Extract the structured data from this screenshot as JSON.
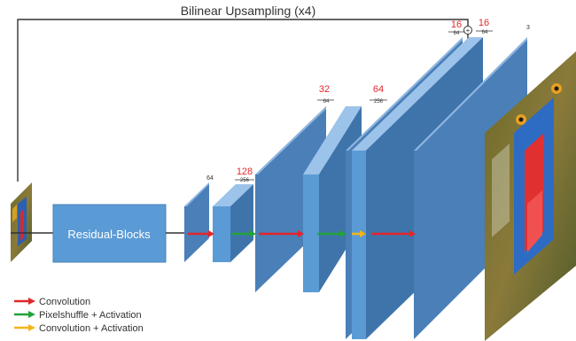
{
  "title": "Bilinear Upsampling (x4)",
  "main_block_label": "Residual-Blocks",
  "plus_symbol": "+",
  "channel_labels": {
    "c64_a": "64",
    "c128": "128",
    "c256_a": "256",
    "c32": "32",
    "c64_b": "64",
    "c64_c": "64",
    "c256_b": "256",
    "c16_a": "16",
    "c64_d": "64",
    "c16_b": "16",
    "c64_e": "64",
    "c3": "3"
  },
  "legend": [
    {
      "label": "Convolution",
      "color": "#e3262b"
    },
    {
      "label": "Pixelshuffle + Activation",
      "color": "#23a33a"
    },
    {
      "label": "Convolution + Activation",
      "color": "#f4b41a"
    }
  ],
  "colors": {
    "block_front": "#4a7fb8",
    "block_top": "#9cc3ea",
    "block_side": "#2e6192",
    "residual": "#5b9bd5",
    "line": "#333333"
  }
}
